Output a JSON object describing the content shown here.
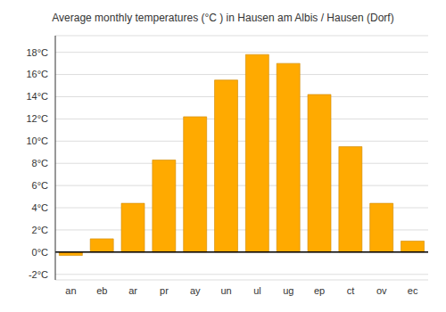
{
  "chart_data": {
    "type": "bar",
    "title": "Average monthly temperatures (°C ) in Hausen am Albis / Hausen (Dorf)",
    "categories": [
      "an",
      "eb",
      "ar",
      "pr",
      "ay",
      "un",
      "ul",
      "ug",
      "ep",
      "ct",
      "ov",
      "ec"
    ],
    "values": [
      -0.3,
      1.2,
      4.4,
      8.3,
      12.2,
      15.5,
      17.8,
      17.0,
      14.2,
      9.5,
      4.4,
      1.0
    ],
    "color": "#FFAA00",
    "ylim": [
      -2.5,
      19.5
    ],
    "yticks": [
      {
        "value": -2,
        "label": "-2°C"
      },
      {
        "value": 0,
        "label": "0°C"
      },
      {
        "value": 2,
        "label": "2°C"
      },
      {
        "value": 4,
        "label": "4°C"
      },
      {
        "value": 6,
        "label": "6°C"
      },
      {
        "value": 8,
        "label": "8°C"
      },
      {
        "value": 10,
        "label": "10°C"
      },
      {
        "value": 12,
        "label": "12°C"
      },
      {
        "value": 14,
        "label": "14°C"
      },
      {
        "value": 16,
        "label": "16°C"
      },
      {
        "value": 18,
        "label": "18°C"
      }
    ],
    "grid": true
  }
}
